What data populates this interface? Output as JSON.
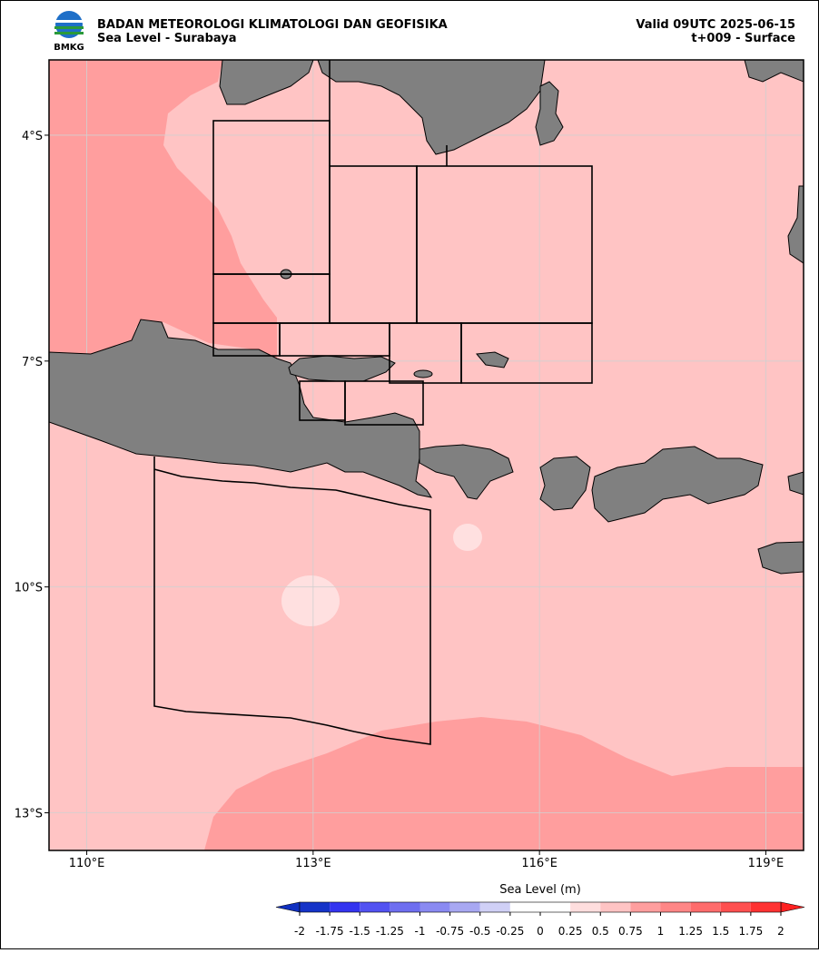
{
  "header": {
    "logo": "BMKG",
    "title": "BADAN METEOROLOGI KLIMATOLOGI DAN GEOFISIKA",
    "subtitle": "Sea Level - Surabaya",
    "valid": "Valid 09UTC 2025-06-15",
    "step": "t+009 - Surface"
  },
  "map": {
    "xlim": [
      109.5,
      119.5
    ],
    "ylim": [
      -13.5,
      -3
    ],
    "xticks": [
      {
        "value": 110,
        "label": "110°E"
      },
      {
        "value": 113,
        "label": "113°E"
      },
      {
        "value": 116,
        "label": "116°E"
      },
      {
        "value": 119,
        "label": "119°E"
      }
    ],
    "yticks": [
      {
        "value": -4,
        "label": "4°S"
      },
      {
        "value": -7,
        "label": "7°S"
      },
      {
        "value": -10,
        "label": "10°S"
      },
      {
        "value": -13,
        "label": "13°S"
      }
    ],
    "grid": true
  },
  "colorbar": {
    "label": "Sea Level (m)",
    "ticks": [
      -2,
      -1.75,
      -1.5,
      -1.25,
      -1,
      -0.75,
      -0.5,
      -0.25,
      0,
      0.25,
      0.5,
      0.75,
      1,
      1.25,
      1.5,
      1.75,
      2
    ],
    "colors": [
      "#1533c8",
      "#3434f0",
      "#5252f2",
      "#6e6ef0",
      "#8a8af2",
      "#a8a8f2",
      "#d0d0f6",
      "#ffffff",
      "#ffffff",
      "#ffdede",
      "#ffc4c4",
      "#ff9e9e",
      "#ff8686",
      "#ff6c6c",
      "#ff5050",
      "#ff3232"
    ],
    "under": "#1030c0",
    "over": "#ff2020"
  }
}
